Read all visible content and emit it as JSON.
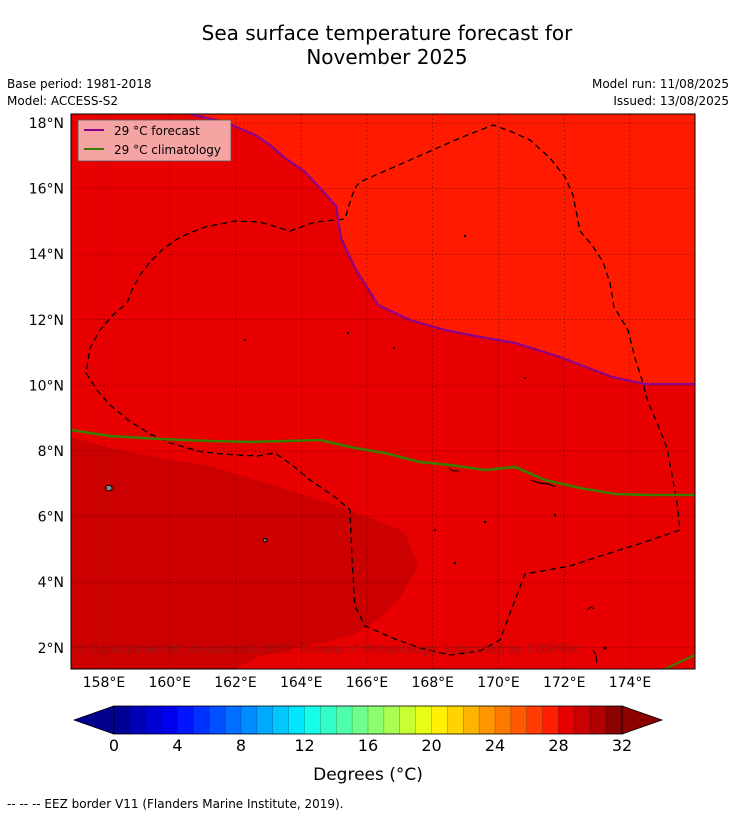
{
  "header": {
    "title_line1": "Sea surface temperature forecast for",
    "title_line2": "November 2025",
    "base_period": "Base period: 1981-2018",
    "model": "Model: ACCESS-S2",
    "model_run": "Model run: 11/08/2025",
    "issued": "Issued: 13/08/2025"
  },
  "map": {
    "lon_ticks": [
      "158°E",
      "160°E",
      "162°E",
      "164°E",
      "166°E",
      "168°E",
      "170°E",
      "172°E",
      "174°E"
    ],
    "lat_ticks": [
      "18°N",
      "16°N",
      "14°N",
      "12°N",
      "10°N",
      "8°N",
      "6°N",
      "4°N",
      "2°N"
    ],
    "legend": [
      {
        "label": "29 °C  forecast",
        "color": "#8b008b"
      },
      {
        "label": "29 °C  climatology",
        "color": "#3a7d00"
      }
    ],
    "copyright": "© Commonwealth of Australia 2025, Bureau of Meteorology. Supported by COSPPac",
    "colors": {
      "c26_28": "#e80000",
      "c28_30": "#ff1a00",
      "c30_32": "#cc0000"
    }
  },
  "colorbar": {
    "tick_labels": [
      "0",
      "4",
      "8",
      "12",
      "16",
      "20",
      "24",
      "28",
      "32"
    ],
    "colors": [
      "#000096",
      "#0000b4",
      "#0000d2",
      "#0000f0",
      "#0014ff",
      "#0032ff",
      "#0050ff",
      "#006eff",
      "#008cff",
      "#00aaff",
      "#00c8ff",
      "#00e6ff",
      "#14ffe6",
      "#32ffc8",
      "#50ffaa",
      "#6eff8c",
      "#8cff6e",
      "#aaff50",
      "#c8ff32",
      "#e6ff14",
      "#fff000",
      "#ffd200",
      "#ffb400",
      "#ff9600",
      "#ff7800",
      "#ff5a00",
      "#ff3c00",
      "#ff1e00",
      "#e80000",
      "#cc0000",
      "#b00000",
      "#8c0000"
    ],
    "under_color": "#00008c",
    "over_color": "#8c0000",
    "title": "Degrees ($^\\circ$C)",
    "title_display": "Degrees (°C)"
  },
  "footer": {
    "note": "--  --  -- EEZ border V11 (Flanders Marine Institute, 2019)."
  }
}
